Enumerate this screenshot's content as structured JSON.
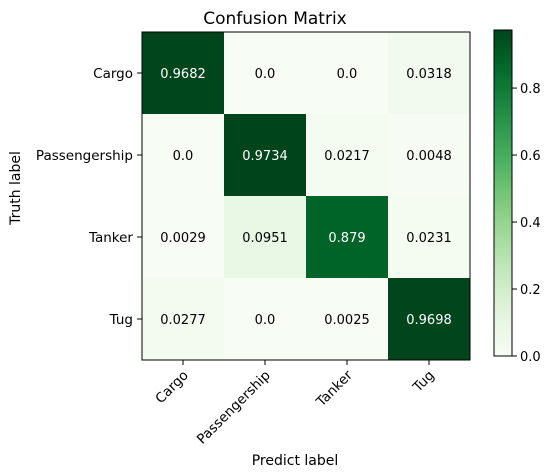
{
  "chart_data": {
    "type": "heatmap",
    "title": "Confusion Matrix",
    "xlabel": "Predict label",
    "ylabel": "Truth label",
    "x_categories": [
      "Cargo",
      "Passengership",
      "Tanker",
      "Tug"
    ],
    "y_categories": [
      "Cargo",
      "Passengership",
      "Tanker",
      "Tug"
    ],
    "values": [
      [
        0.9682,
        0.0,
        0.0,
        0.0318
      ],
      [
        0.0,
        0.9734,
        0.0217,
        0.0048
      ],
      [
        0.0029,
        0.0951,
        0.879,
        0.0231
      ],
      [
        0.0277,
        0.0,
        0.0025,
        0.9698
      ]
    ],
    "cell_labels": [
      [
        "0.9682",
        "0.0",
        "0.0",
        "0.0318"
      ],
      [
        "0.0",
        "0.9734",
        "0.0217",
        "0.0048"
      ],
      [
        "0.0029",
        "0.0951",
        "0.879",
        "0.0231"
      ],
      [
        "0.0277",
        "0.0",
        "0.0025",
        "0.9698"
      ]
    ],
    "colorbar": {
      "range": [
        0.0,
        0.9734
      ],
      "ticks": [
        0.0,
        0.2,
        0.4,
        0.6,
        0.8
      ],
      "tick_labels": [
        "0.0",
        "0.2",
        "0.4",
        "0.6",
        "0.8"
      ],
      "colormap": "Greens",
      "low_color": "#f7fcf5",
      "high_color": "#00441b"
    },
    "grid": false,
    "legend": "none"
  }
}
